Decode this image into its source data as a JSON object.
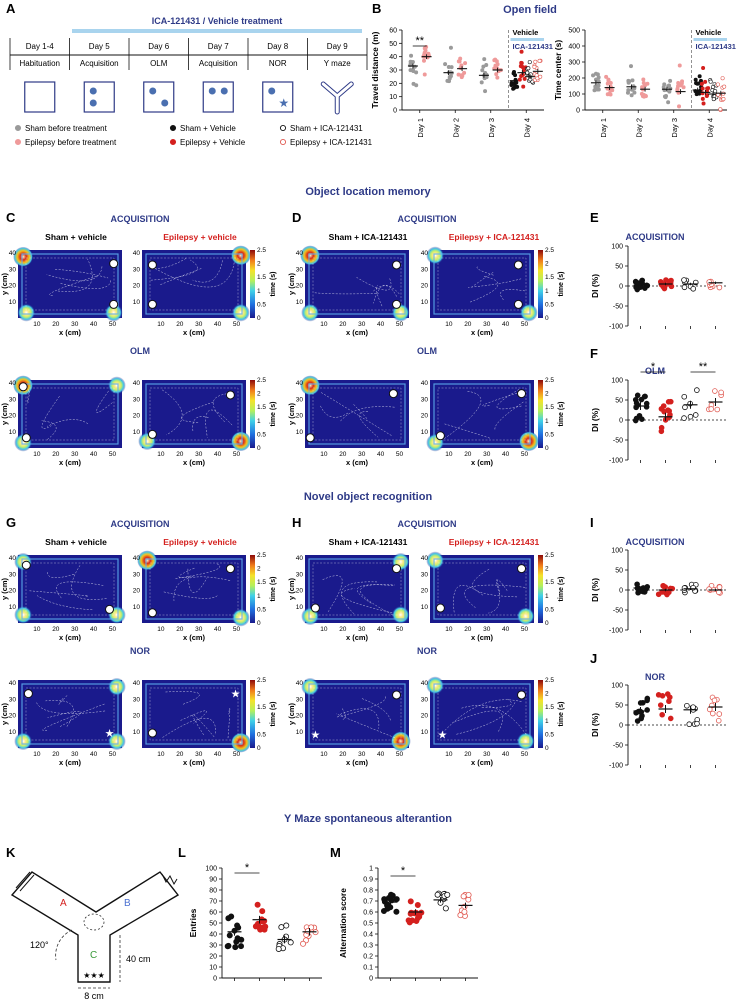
{
  "panel_letters": {
    "A": "A",
    "B": "B",
    "C": "C",
    "D": "D",
    "E": "E",
    "F": "F",
    "G": "G",
    "H": "H",
    "I": "I",
    "J": "J",
    "K": "K",
    "L": "L",
    "M": "M"
  },
  "colors": {
    "navy": "#2e3a87",
    "red": "#d4201e",
    "lightblue": "#a9d4ee",
    "gray": "#9a9a9a",
    "pink": "#ef9a9a",
    "black": "#111111",
    "open_red": "#e05a52",
    "heat_bg": "#1a1a8c",
    "heat_frame": "#0f5fc7"
  },
  "timeline": {
    "treatment_label": "ICA-121431 / Vehicle treatment",
    "days": [
      "Day 1-4",
      "Day 5",
      "Day 6",
      "Day 7",
      "Day 8",
      "Day 9"
    ],
    "phases": [
      "Habituation",
      "Acquisition",
      "OLM",
      "Acquisition",
      "NOR",
      "Y maze"
    ],
    "legend": [
      "Sham before treatment",
      "Epilepsy before treatment",
      "Sham + Vehicle",
      "Epilepsy + Vehicle",
      "Sham + ICA-121431",
      "Epilepsy + ICA-121431"
    ]
  },
  "open_field": {
    "title": "Open field",
    "vehicle_label": "Vehicle",
    "drug_label": "ICA-121431",
    "day_labels": [
      "Day 1",
      "Day 2",
      "Day 3",
      "Day 4"
    ],
    "sig": "**"
  },
  "section_titles": {
    "olm": "Object location memory",
    "nor": "Novel object recognition",
    "ymaze": "Y Maze spontaneous alterantion"
  },
  "heatmaps": {
    "acquisition": "ACQUISITION",
    "olm": "OLM",
    "nor": "NOR",
    "sham_vehicle": "Sham + vehicle",
    "epi_vehicle": "Epilepsy + vehicle",
    "sham_drug": "Sham + ICA-121431",
    "epi_drug": "Epilepsy + ICA-121431",
    "xlabel": "x (cm)",
    "ylabel": "y (cm)",
    "colorbar_label": "time (s)",
    "xticks": [
      "10",
      "20",
      "30",
      "40",
      "50"
    ],
    "yticks": [
      "10",
      "20",
      "30",
      "40"
    ],
    "cticks": [
      "0",
      "0.5",
      "1",
      "1.5",
      "2",
      "2.5"
    ]
  },
  "ymaze": {
    "arm_a": "A",
    "arm_b": "B",
    "arm_c": "C",
    "angle": "120°",
    "length": "40 cm",
    "width": "8 cm",
    "stars": "★★★"
  },
  "chart_data": [
    {
      "type": "scatter",
      "title": "Open field",
      "ylabel": "Travel distance (m)",
      "ylim": [
        0,
        60
      ],
      "yticks": [
        0,
        10,
        20,
        30,
        40,
        50,
        60
      ],
      "categories": [
        "Day 1",
        "Day 2",
        "Day 3",
        "Day 4"
      ],
      "series": [
        {
          "name": "Sham before treatment",
          "means": [
            33,
            28,
            26
          ]
        },
        {
          "name": "Epilepsy before treatment",
          "means": [
            40,
            31,
            30
          ]
        },
        {
          "name": "Sham + Vehicle",
          "means": [
            null,
            null,
            null,
            22
          ]
        },
        {
          "name": "Epilepsy + Vehicle",
          "means": [
            null,
            null,
            null,
            28
          ]
        },
        {
          "name": "Sham + ICA-121431",
          "means": [
            null,
            null,
            null,
            25
          ]
        },
        {
          "name": "Epilepsy + ICA-121431",
          "means": [
            null,
            null,
            null,
            29
          ]
        }
      ]
    },
    {
      "type": "scatter",
      "ylabel": "Time center (s)",
      "ylim": [
        0,
        500
      ],
      "yticks": [
        0,
        100,
        200,
        300,
        400,
        500
      ],
      "categories": [
        "Day 1",
        "Day 2",
        "Day 3",
        "Day 4"
      ],
      "series": [
        {
          "name": "Sham before treatment",
          "means": [
            170,
            145,
            130
          ]
        },
        {
          "name": "Epilepsy before treatment",
          "means": [
            140,
            130,
            115
          ]
        },
        {
          "name": "Sham + Vehicle",
          "means": [
            null,
            null,
            null,
            125
          ]
        },
        {
          "name": "Epilepsy + Vehicle",
          "means": [
            null,
            null,
            null,
            110
          ]
        },
        {
          "name": "Sham + ICA-121431",
          "means": [
            null,
            null,
            null,
            100
          ]
        },
        {
          "name": "Epilepsy + ICA-121431",
          "means": [
            null,
            null,
            null,
            105
          ]
        }
      ]
    },
    {
      "type": "scatter",
      "title": "ACQUISITION",
      "ylabel": "DI (%)",
      "ylim": [
        -100,
        100
      ],
      "yticks": [
        -100,
        -50,
        0,
        50,
        100
      ],
      "groups": [
        "Sham + Vehicle",
        "Epilepsy + Vehicle",
        "Sham + ICA-121431",
        "Epilepsy + ICA-121431"
      ],
      "means": [
        2,
        5,
        5,
        8
      ]
    },
    {
      "type": "scatter",
      "title": "OLM",
      "ylabel": "DI (%)",
      "ylim": [
        -100,
        100
      ],
      "yticks": [
        -100,
        -50,
        0,
        50,
        100
      ],
      "groups": [
        "Sham + Vehicle",
        "Epilepsy + Vehicle",
        "Sham + ICA-121431",
        "Epilepsy + ICA-121431"
      ],
      "means": [
        35,
        8,
        38,
        45
      ],
      "sig": [
        "*",
        "**"
      ]
    },
    {
      "type": "scatter",
      "title": "ACQUISITION",
      "ylabel": "DI (%)",
      "ylim": [
        -100,
        100
      ],
      "yticks": [
        -100,
        -50,
        0,
        50,
        100
      ],
      "groups": [
        "Sham + Vehicle",
        "Epilepsy + Vehicle",
        "Sham + ICA-121431",
        "Epilepsy + ICA-121431"
      ],
      "means": [
        5,
        0,
        3,
        0
      ]
    },
    {
      "type": "scatter",
      "title": "NOR",
      "ylabel": "DI (%)",
      "ylim": [
        -100,
        100
      ],
      "yticks": [
        -100,
        -50,
        0,
        50,
        100
      ],
      "groups": [
        "Sham + Vehicle",
        "Epilepsy + Vehicle",
        "Sham + ICA-121431",
        "Epilepsy + ICA-121431"
      ],
      "means": [
        35,
        40,
        38,
        45
      ]
    },
    {
      "type": "scatter",
      "ylabel": "Entries",
      "ylim": [
        0,
        100
      ],
      "yticks": [
        0,
        10,
        20,
        30,
        40,
        50,
        60,
        70,
        80,
        90,
        100
      ],
      "groups": [
        "Sham + Vehicle",
        "Epilepsy + Vehicle",
        "Sham + ICA-121431",
        "Epilepsy + ICA-121431"
      ],
      "means": [
        42,
        53,
        35,
        42
      ],
      "sig": [
        "*"
      ]
    },
    {
      "type": "scatter",
      "ylabel": "Alternation score",
      "ylim": [
        0,
        1
      ],
      "yticks": [
        0,
        0.1,
        0.2,
        0.3,
        0.4,
        0.5,
        0.6,
        0.7,
        0.8,
        0.9,
        1
      ],
      "groups": [
        "Sham + Vehicle",
        "Epilepsy + Vehicle",
        "Sham + ICA-121431",
        "Epilepsy + ICA-121431"
      ],
      "means": [
        0.69,
        0.6,
        0.71,
        0.66
      ],
      "sig": [
        "*"
      ]
    }
  ]
}
